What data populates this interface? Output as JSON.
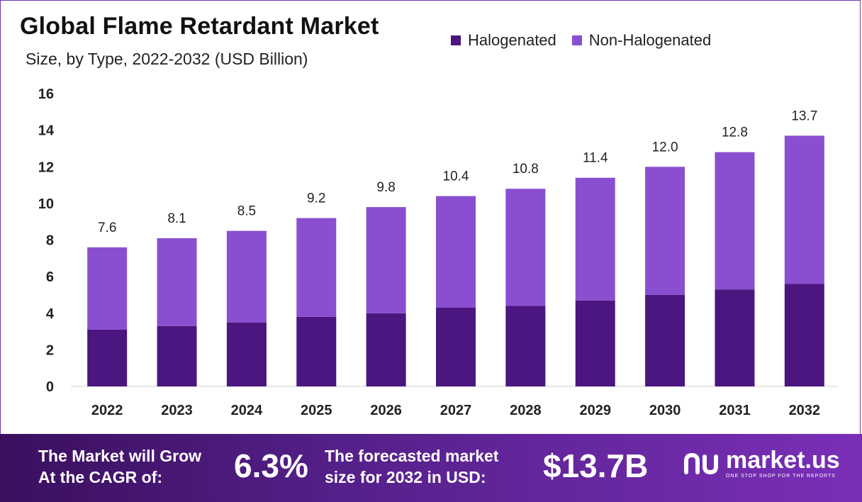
{
  "title": "Global Flame Retardant Market",
  "subtitle": "Size, by Type, 2022-2032 (USD Billion)",
  "legend": {
    "items": [
      {
        "label": "Halogenated",
        "color": "#4b1680"
      },
      {
        "label": "Non-Halogenated",
        "color": "#8a4fd0"
      }
    ]
  },
  "chart_data": {
    "type": "bar",
    "stacked": true,
    "title": "Global Flame Retardant Market",
    "subtitle": "Size, by Type, 2022-2032 (USD Billion)",
    "categories": [
      "2022",
      "2023",
      "2024",
      "2025",
      "2026",
      "2027",
      "2028",
      "2029",
      "2030",
      "2031",
      "2032"
    ],
    "series": [
      {
        "name": "Halogenated",
        "color": "#4b1680",
        "values": [
          3.1,
          3.3,
          3.5,
          3.8,
          4.0,
          4.3,
          4.4,
          4.7,
          5.0,
          5.3,
          5.6
        ]
      },
      {
        "name": "Non-Halogenated",
        "color": "#8a4fd0",
        "values": [
          4.5,
          4.8,
          5.0,
          5.4,
          5.8,
          6.1,
          6.4,
          6.7,
          7.0,
          7.5,
          8.1
        ]
      }
    ],
    "totals": [
      "7.6",
      "8.1",
      "8.5",
      "9.2",
      "9.8",
      "10.4",
      "10.8",
      "11.4",
      "12.0",
      "12.8",
      "13.7"
    ],
    "ylim": [
      0,
      16
    ],
    "yticks": [
      "0",
      "2",
      "4",
      "6",
      "8",
      "10",
      "12",
      "14",
      "16"
    ],
    "grid": false,
    "legend_position": "top-right"
  },
  "footer": {
    "cagr_line1": "The Market will Grow",
    "cagr_line2": "At the CAGR of:",
    "cagr_value": "6.3%",
    "forecast_line1": "The forecasted market",
    "forecast_line2": "size for 2032 in USD:",
    "forecast_value": "$13.7B",
    "brand": "market.us",
    "tagline": "ONE STOP SHOP FOR THE REPORTS"
  }
}
